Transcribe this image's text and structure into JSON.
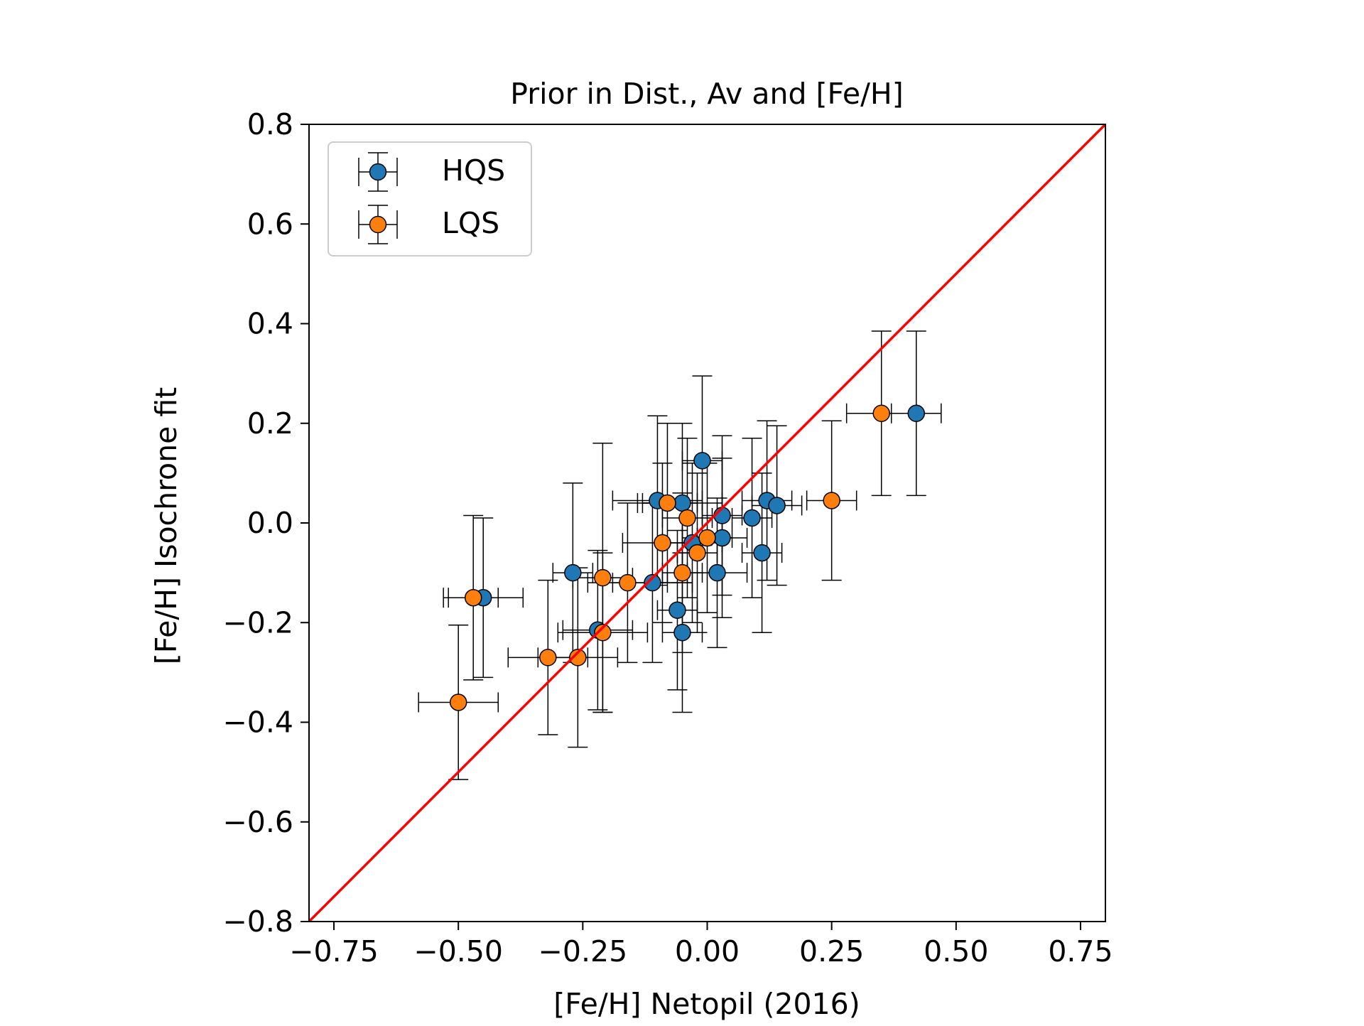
{
  "chart_data": {
    "type": "scatter",
    "title": "Prior in Dist., Av and [Fe/H]",
    "xlabel": "[Fe/H] Netopil (2016)",
    "ylabel": "[Fe/H] Isochrone fit",
    "xlim": [
      -0.8,
      0.8
    ],
    "ylim": [
      -0.8,
      0.8
    ],
    "xticks": [
      -0.75,
      -0.5,
      -0.25,
      0.0,
      0.25,
      0.5,
      0.75
    ],
    "xtick_labels": [
      "−0.75",
      "−0.50",
      "−0.25",
      "0.00",
      "0.25",
      "0.50",
      "0.75"
    ],
    "yticks": [
      -0.8,
      -0.6,
      -0.4,
      -0.2,
      0.0,
      0.2,
      0.4,
      0.6,
      0.8
    ],
    "ytick_labels": [
      "−0.8",
      "−0.6",
      "−0.4",
      "−0.2",
      "0.0",
      "0.2",
      "0.4",
      "0.6",
      "0.8"
    ],
    "grid": false,
    "legend_position": "top-left",
    "reference_line": {
      "name": "one-to-one",
      "color": "#ff0000",
      "from": [
        -0.8,
        -0.8
      ],
      "to": [
        0.8,
        0.8
      ]
    },
    "series": [
      {
        "name": "HQS",
        "color": "#1f77b4",
        "points": [
          {
            "x": -0.45,
            "y": -0.15,
            "xerr": 0.08,
            "yerr": 0.16
          },
          {
            "x": -0.27,
            "y": -0.1,
            "xerr": 0.04,
            "yerr": 0.18
          },
          {
            "x": -0.22,
            "y": -0.215,
            "xerr": 0.07,
            "yerr": 0.16
          },
          {
            "x": -0.11,
            "y": -0.12,
            "xerr": 0.08,
            "yerr": 0.16
          },
          {
            "x": -0.1,
            "y": 0.045,
            "xerr": 0.09,
            "yerr": 0.17
          },
          {
            "x": -0.06,
            "y": -0.175,
            "xerr": 0.04,
            "yerr": 0.16
          },
          {
            "x": -0.05,
            "y": 0.04,
            "xerr": 0.08,
            "yerr": 0.16
          },
          {
            "x": -0.05,
            "y": -0.22,
            "xerr": 0.04,
            "yerr": 0.16
          },
          {
            "x": -0.03,
            "y": -0.04,
            "xerr": 0.06,
            "yerr": 0.16
          },
          {
            "x": -0.01,
            "y": 0.125,
            "xerr": 0.04,
            "yerr": 0.17
          },
          {
            "x": 0.02,
            "y": -0.1,
            "xerr": 0.06,
            "yerr": 0.15
          },
          {
            "x": 0.03,
            "y": 0.015,
            "xerr": 0.04,
            "yerr": 0.16
          },
          {
            "x": 0.03,
            "y": -0.03,
            "xerr": 0.05,
            "yerr": 0.16
          },
          {
            "x": 0.09,
            "y": 0.01,
            "xerr": 0.04,
            "yerr": 0.16
          },
          {
            "x": 0.11,
            "y": -0.06,
            "xerr": 0.04,
            "yerr": 0.16
          },
          {
            "x": 0.12,
            "y": 0.045,
            "xerr": 0.05,
            "yerr": 0.16
          },
          {
            "x": 0.14,
            "y": 0.035,
            "xerr": 0.05,
            "yerr": 0.16
          },
          {
            "x": 0.42,
            "y": 0.22,
            "xerr": 0.05,
            "yerr": 0.165
          }
        ]
      },
      {
        "name": "LQS",
        "color": "#ff7f0e",
        "points": [
          {
            "x": -0.5,
            "y": -0.36,
            "xerr": 0.08,
            "yerr": 0.155
          },
          {
            "x": -0.47,
            "y": -0.15,
            "xerr": 0.05,
            "yerr": 0.165
          },
          {
            "x": -0.32,
            "y": -0.27,
            "xerr": 0.08,
            "yerr": 0.155
          },
          {
            "x": -0.26,
            "y": -0.27,
            "xerr": 0.08,
            "yerr": 0.18
          },
          {
            "x": -0.21,
            "y": -0.11,
            "xerr": 0.06,
            "yerr": 0.27
          },
          {
            "x": -0.21,
            "y": -0.22,
            "xerr": 0.09,
            "yerr": 0.16
          },
          {
            "x": -0.16,
            "y": -0.12,
            "xerr": 0.08,
            "yerr": 0.16
          },
          {
            "x": -0.09,
            "y": -0.04,
            "xerr": 0.08,
            "yerr": 0.16
          },
          {
            "x": -0.08,
            "y": 0.04,
            "xerr": 0.06,
            "yerr": 0.16
          },
          {
            "x": -0.05,
            "y": -0.1,
            "xerr": 0.04,
            "yerr": 0.16
          },
          {
            "x": -0.04,
            "y": 0.01,
            "xerr": 0.05,
            "yerr": 0.16
          },
          {
            "x": -0.02,
            "y": -0.06,
            "xerr": 0.04,
            "yerr": 0.16
          },
          {
            "x": 0.0,
            "y": -0.03,
            "xerr": 0.05,
            "yerr": 0.15
          },
          {
            "x": 0.25,
            "y": 0.045,
            "xerr": 0.05,
            "yerr": 0.16
          },
          {
            "x": 0.35,
            "y": 0.22,
            "xerr": 0.07,
            "yerr": 0.165
          }
        ]
      }
    ]
  }
}
